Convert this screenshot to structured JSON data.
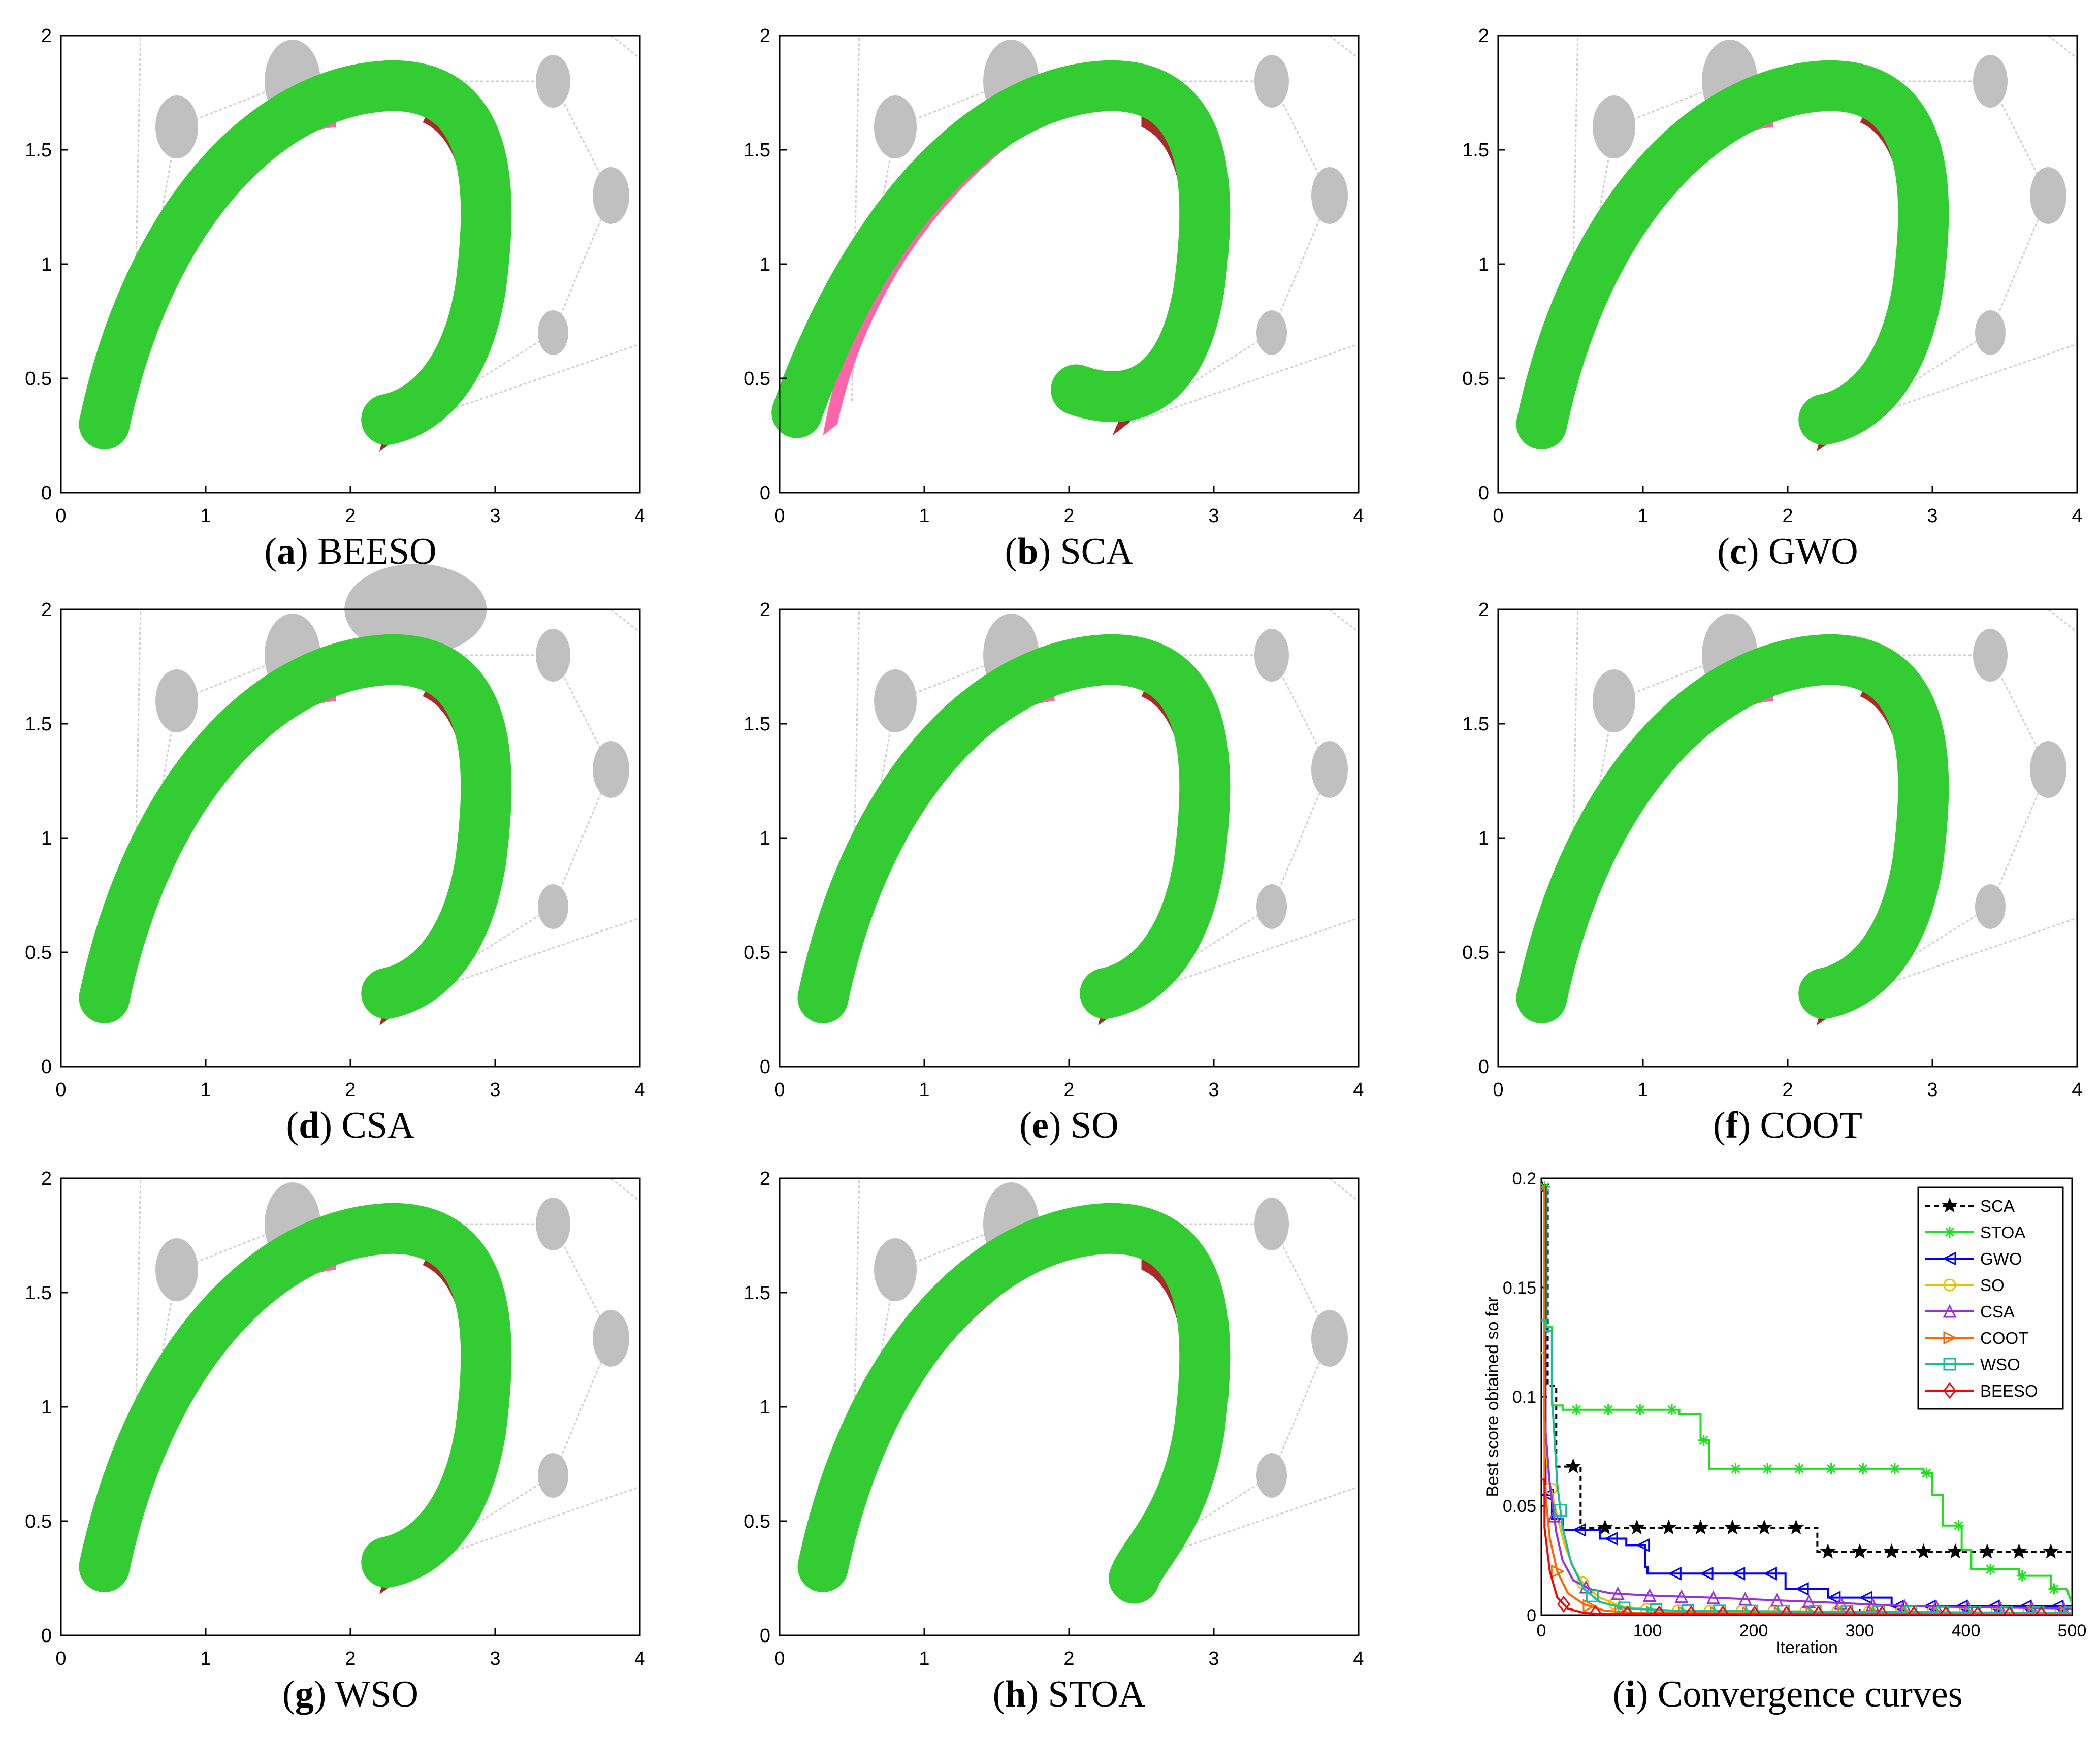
{
  "panels": [
    {
      "letter": "a",
      "label": "BEESO"
    },
    {
      "letter": "b",
      "label": "SCA"
    },
    {
      "letter": "c",
      "label": "GWO"
    },
    {
      "letter": "d",
      "label": "CSA"
    },
    {
      "letter": "e",
      "label": "SO"
    },
    {
      "letter": "f",
      "label": "COOT"
    },
    {
      "letter": "g",
      "label": "WSO"
    },
    {
      "letter": "h",
      "label": "STOA"
    },
    {
      "letter": "i",
      "label": "Convergence curves"
    }
  ],
  "colors": {
    "shape_fit": "#33cc33",
    "target_inner": "#ff66aa",
    "target_outer": "#aa2a2a",
    "obstacle": "#c0c0c0",
    "grid_line": "#d0d0d0"
  },
  "shape_axes": {
    "xlim": [
      0,
      4
    ],
    "ylim": [
      0,
      2
    ],
    "xticks": [
      "0",
      "1",
      "2",
      "3",
      "4"
    ],
    "yticks": [
      "0",
      "0.5",
      "1",
      "1.5",
      "2"
    ]
  },
  "chart_data": {
    "type": "line",
    "title": "",
    "xlabel": "Iteration",
    "ylabel": "Best score obtained so far",
    "xlim": [
      0,
      500
    ],
    "ylim": [
      0,
      0.2
    ],
    "xticks": [
      "0",
      "100",
      "200",
      "300",
      "400",
      "500"
    ],
    "yticks": [
      "0",
      "0.05",
      "0.1",
      "0.15",
      "0.2"
    ],
    "legend_position": "top-right",
    "series": [
      {
        "name": "SCA",
        "color": "#000000",
        "dash": "10,7",
        "marker": "star",
        "points": [
          [
            0,
            0.196
          ],
          [
            6,
            0.196
          ],
          [
            6,
            0.105
          ],
          [
            14,
            0.105
          ],
          [
            14,
            0.068
          ],
          [
            37,
            0.068
          ],
          [
            37,
            0.04
          ],
          [
            260,
            0.04
          ],
          [
            260,
            0.029
          ],
          [
            500,
            0.029
          ]
        ]
      },
      {
        "name": "STOA",
        "color": "#22dd22",
        "dash": "",
        "marker": "asterisk",
        "points": [
          [
            0,
            0.196
          ],
          [
            5,
            0.196
          ],
          [
            5,
            0.132
          ],
          [
            10,
            0.132
          ],
          [
            10,
            0.096
          ],
          [
            20,
            0.096
          ],
          [
            20,
            0.094
          ],
          [
            130,
            0.094
          ],
          [
            130,
            0.092
          ],
          [
            150,
            0.092
          ],
          [
            150,
            0.08
          ],
          [
            158,
            0.08
          ],
          [
            158,
            0.067
          ],
          [
            360,
            0.067
          ],
          [
            360,
            0.065
          ],
          [
            368,
            0.065
          ],
          [
            368,
            0.055
          ],
          [
            378,
            0.055
          ],
          [
            378,
            0.041
          ],
          [
            396,
            0.041
          ],
          [
            396,
            0.03
          ],
          [
            405,
            0.03
          ],
          [
            405,
            0.021
          ],
          [
            450,
            0.021
          ],
          [
            450,
            0.018
          ],
          [
            480,
            0.018
          ],
          [
            480,
            0.012
          ],
          [
            495,
            0.012
          ],
          [
            500,
            0.005
          ]
        ]
      },
      {
        "name": "GWO",
        "color": "#0000ff",
        "dash": "",
        "marker": "triangle-left",
        "points": [
          [
            0,
            0.196
          ],
          [
            4,
            0.196
          ],
          [
            4,
            0.055
          ],
          [
            10,
            0.055
          ],
          [
            10,
            0.044
          ],
          [
            20,
            0.044
          ],
          [
            20,
            0.039
          ],
          [
            55,
            0.039
          ],
          [
            55,
            0.035
          ],
          [
            80,
            0.035
          ],
          [
            80,
            0.032
          ],
          [
            98,
            0.032
          ],
          [
            98,
            0.022
          ],
          [
            100,
            0.022
          ],
          [
            100,
            0.019
          ],
          [
            230,
            0.019
          ],
          [
            230,
            0.012
          ],
          [
            270,
            0.012
          ],
          [
            270,
            0.008
          ],
          [
            330,
            0.008
          ],
          [
            330,
            0.004
          ],
          [
            500,
            0.004
          ]
        ]
      },
      {
        "name": "SO",
        "color": "#e6c200",
        "dash": "",
        "marker": "circle",
        "points": [
          [
            0,
            0.12
          ],
          [
            3,
            0.12
          ],
          [
            3,
            0.08
          ],
          [
            8,
            0.06
          ],
          [
            15,
            0.045
          ],
          [
            22,
            0.032
          ],
          [
            30,
            0.022
          ],
          [
            40,
            0.014
          ],
          [
            55,
            0.008
          ],
          [
            75,
            0.004
          ],
          [
            110,
            0.002
          ],
          [
            500,
            0.001
          ]
        ]
      },
      {
        "name": "CSA",
        "color": "#9b30d9",
        "dash": "",
        "marker": "triangle-up",
        "points": [
          [
            0,
            0.196
          ],
          [
            3,
            0.196
          ],
          [
            3,
            0.09
          ],
          [
            8,
            0.06
          ],
          [
            14,
            0.038
          ],
          [
            20,
            0.025
          ],
          [
            30,
            0.016
          ],
          [
            45,
            0.012
          ],
          [
            65,
            0.01
          ],
          [
            100,
            0.009
          ],
          [
            160,
            0.008
          ],
          [
            260,
            0.006
          ],
          [
            350,
            0.004
          ],
          [
            500,
            0.003
          ]
        ]
      },
      {
        "name": "COOT",
        "color": "#ff6600",
        "dash": "",
        "marker": "triangle-right",
        "points": [
          [
            0,
            0.196
          ],
          [
            3,
            0.196
          ],
          [
            3,
            0.06
          ],
          [
            8,
            0.035
          ],
          [
            15,
            0.02
          ],
          [
            25,
            0.01
          ],
          [
            40,
            0.005
          ],
          [
            60,
            0.002
          ],
          [
            90,
            0.001
          ],
          [
            500,
            0.0005
          ]
        ]
      },
      {
        "name": "WSO",
        "color": "#1abc9c",
        "dash": "",
        "marker": "square",
        "points": [
          [
            0,
            0.135
          ],
          [
            4,
            0.135
          ],
          [
            4,
            0.13
          ],
          [
            10,
            0.13
          ],
          [
            10,
            0.1
          ],
          [
            15,
            0.06
          ],
          [
            20,
            0.04
          ],
          [
            28,
            0.024
          ],
          [
            40,
            0.012
          ],
          [
            55,
            0.006
          ],
          [
            80,
            0.003
          ],
          [
            130,
            0.002
          ],
          [
            500,
            0.001
          ]
        ]
      },
      {
        "name": "BEESO",
        "color": "#ff0000",
        "dash": "",
        "marker": "diamond",
        "points": [
          [
            0,
            0.062
          ],
          [
            3,
            0.062
          ],
          [
            3,
            0.04
          ],
          [
            8,
            0.02
          ],
          [
            15,
            0.008
          ],
          [
            25,
            0.003
          ],
          [
            40,
            0.001
          ],
          [
            60,
            0.0005
          ],
          [
            500,
            0.0002
          ]
        ]
      }
    ]
  }
}
